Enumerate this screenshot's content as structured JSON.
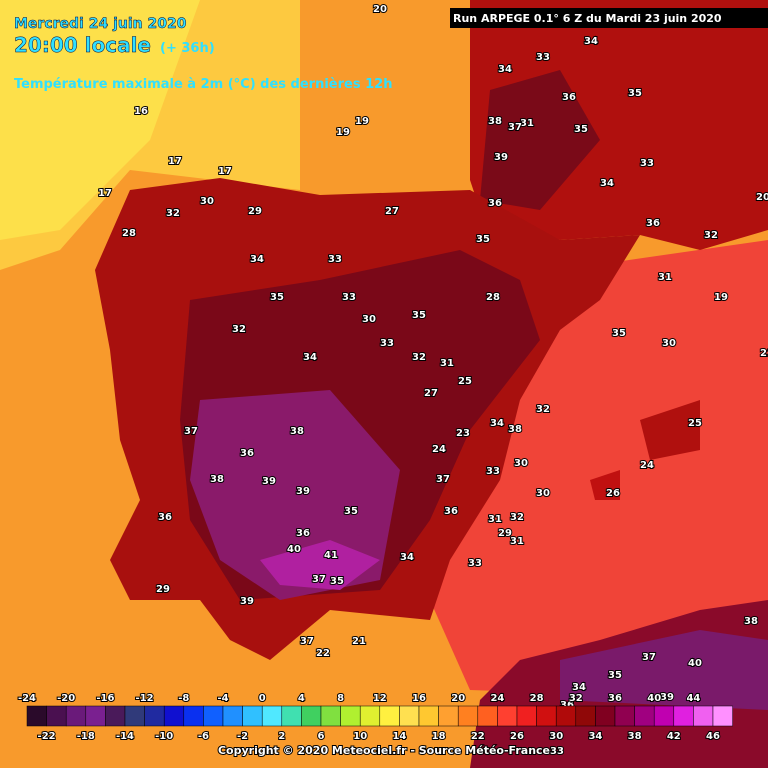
{
  "header": {
    "date": "Mercredi 24 juin 2020",
    "time": "20:00 locale",
    "lead": "(+ 36h)",
    "parameter": "Température maximale à 2m (°C) des dernières 12h",
    "run": "Run ARPEGE 0.1° 6 Z du Mardi 23 juin 2020"
  },
  "map_labels": [
    "20",
    "16",
    "19",
    "19",
    "17",
    "17",
    "17",
    "28",
    "32",
    "30",
    "29",
    "27",
    "34",
    "33",
    "35",
    "36",
    "34",
    "33",
    "31",
    "38",
    "37",
    "39",
    "36",
    "35",
    "34",
    "33",
    "35",
    "33",
    "32",
    "30",
    "34",
    "33",
    "35",
    "32",
    "31",
    "27",
    "25",
    "24",
    "23",
    "28",
    "36",
    "37",
    "38",
    "39",
    "36",
    "38",
    "39",
    "35",
    "36",
    "37",
    "40",
    "41",
    "39",
    "37",
    "35",
    "34",
    "33",
    "31",
    "30",
    "29",
    "26",
    "24",
    "31",
    "32",
    "30",
    "22",
    "21",
    "34",
    "35",
    "36",
    "34",
    "38",
    "37",
    "36",
    "35",
    "29",
    "32",
    "31",
    "30",
    "25",
    "20",
    "19",
    "21",
    "33",
    "32",
    "38",
    "40",
    "39",
    "37",
    "35",
    "34",
    "33",
    "36"
  ],
  "legend": {
    "ticks": [
      "-24",
      "-22",
      "-20",
      "-18",
      "-16",
      "-14",
      "-12",
      "-10",
      "-8",
      "-6",
      "-4",
      "-2",
      "0",
      "2",
      "4",
      "6",
      "8",
      "10",
      "12",
      "14",
      "16",
      "18",
      "20",
      "22",
      "24",
      "26",
      "28",
      "30",
      "32",
      "34",
      "36",
      "38",
      "40",
      "42",
      "44",
      "46"
    ],
    "colors": [
      "#2a0a2a",
      "#4a1050",
      "#6a1a7a",
      "#7a2090",
      "#4a1a5a",
      "#303a7a",
      "#202aa0",
      "#1010d0",
      "#0a30f0",
      "#1060ff",
      "#2090ff",
      "#30c0ff",
      "#50e8ff",
      "#40e0b0",
      "#40d060",
      "#80e040",
      "#b0f030",
      "#e0f030",
      "#fff040",
      "#ffe050",
      "#ffc830",
      "#ffa030",
      "#ff8020",
      "#ff6020",
      "#ff4030",
      "#f02020",
      "#d01010",
      "#b00a0a",
      "#900808",
      "#800020",
      "#900050",
      "#a00080",
      "#c000b0",
      "#e020e0",
      "#f060f0",
      "#ff90ff"
    ]
  },
  "footer": {
    "copyright": "Copyright © 2020 Meteociel.fr - Source Météo-France"
  }
}
